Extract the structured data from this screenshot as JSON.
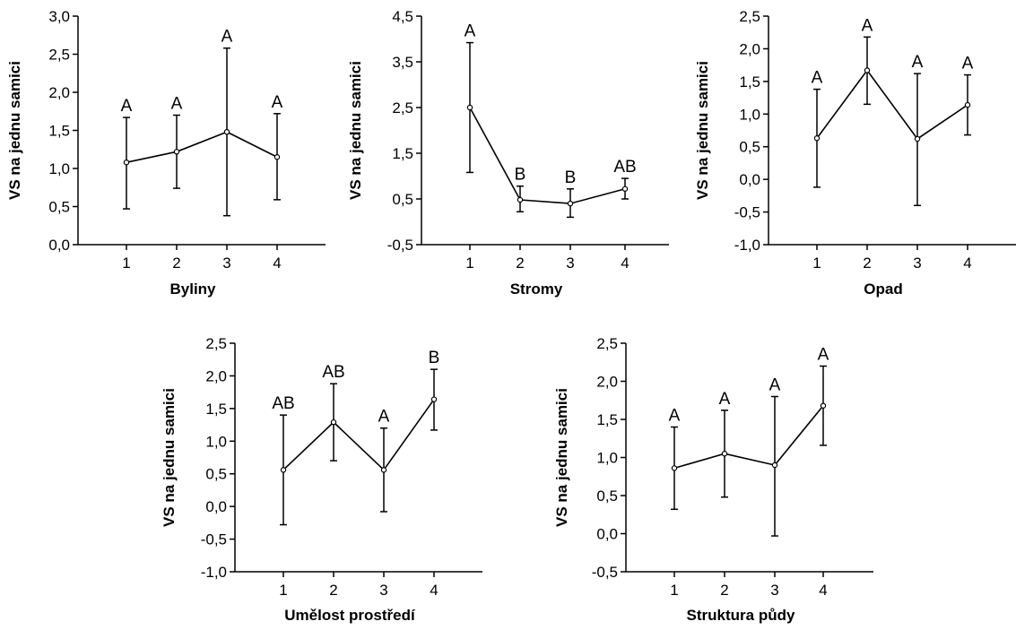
{
  "chart_data": [
    {
      "type": "line",
      "xlabel": "Byliny",
      "ylabel": "VS na jednu samici",
      "ylim": [
        0,
        3
      ],
      "yticks": [
        "0,0",
        "0,5",
        "1,0",
        "1,5",
        "2,0",
        "2,5",
        "3,0"
      ],
      "categories": [
        "1",
        "2",
        "3",
        "4"
      ],
      "values": [
        1.08,
        1.22,
        1.48,
        1.15
      ],
      "error_low": [
        0.47,
        0.74,
        0.38,
        0.59
      ],
      "error_high": [
        1.67,
        1.7,
        2.58,
        1.72
      ],
      "labels": [
        "A",
        "A",
        "A",
        "A"
      ]
    },
    {
      "type": "line",
      "xlabel": "Stromy",
      "ylabel": "VS na jednu samici",
      "ylim": [
        -0.5,
        4.5
      ],
      "yticks": [
        "-0,5",
        "0,5",
        "1,5",
        "2,5",
        "3,5",
        "4,5"
      ],
      "categories": [
        "1",
        "2",
        "3",
        "4"
      ],
      "values": [
        2.5,
        0.48,
        0.4,
        0.72
      ],
      "error_low": [
        1.08,
        0.22,
        0.1,
        0.5
      ],
      "error_high": [
        3.92,
        0.78,
        0.72,
        0.95
      ],
      "labels": [
        "A",
        "B",
        "B",
        "AB"
      ]
    },
    {
      "type": "line",
      "xlabel": "Opad",
      "ylabel": "VS na jednu samici",
      "ylim": [
        -1,
        2.5
      ],
      "yticks": [
        "-1,0",
        "-0,5",
        "0,0",
        "0,5",
        "1,0",
        "1,5",
        "2,0",
        "2,5"
      ],
      "categories": [
        "1",
        "2",
        "3",
        "4"
      ],
      "values": [
        0.63,
        1.67,
        0.62,
        1.14
      ],
      "error_low": [
        -0.12,
        1.15,
        -0.4,
        0.68
      ],
      "error_high": [
        1.38,
        2.18,
        1.62,
        1.6
      ],
      "labels": [
        "A",
        "A",
        "A",
        "A"
      ]
    },
    {
      "type": "line",
      "xlabel": "Umělost prostředí",
      "ylabel": "VS na jednu samici",
      "ylim": [
        -1,
        2.5
      ],
      "yticks": [
        "-1,0",
        "-0,5",
        "0,0",
        "0,5",
        "1,0",
        "1,5",
        "2,0",
        "2,5"
      ],
      "categories": [
        "1",
        "2",
        "3",
        "4"
      ],
      "values": [
        0.56,
        1.29,
        0.56,
        1.64
      ],
      "error_low": [
        -0.28,
        0.7,
        -0.08,
        1.17
      ],
      "error_high": [
        1.4,
        1.88,
        1.2,
        2.1
      ],
      "labels": [
        "AB",
        "AB",
        "A",
        "B"
      ]
    },
    {
      "type": "line",
      "xlabel": "Struktura půdy",
      "ylabel": "VS na jednu samici",
      "ylim": [
        -0.5,
        2.5
      ],
      "yticks": [
        "-0,5",
        "0,0",
        "0,5",
        "1,0",
        "1,5",
        "2,0",
        "2,5"
      ],
      "categories": [
        "1",
        "2",
        "3",
        "4"
      ],
      "values": [
        0.86,
        1.05,
        0.9,
        1.68
      ],
      "error_low": [
        0.32,
        0.48,
        -0.03,
        1.16
      ],
      "error_high": [
        1.4,
        1.62,
        1.8,
        2.2
      ],
      "labels": [
        "A",
        "A",
        "A",
        "A"
      ]
    }
  ]
}
